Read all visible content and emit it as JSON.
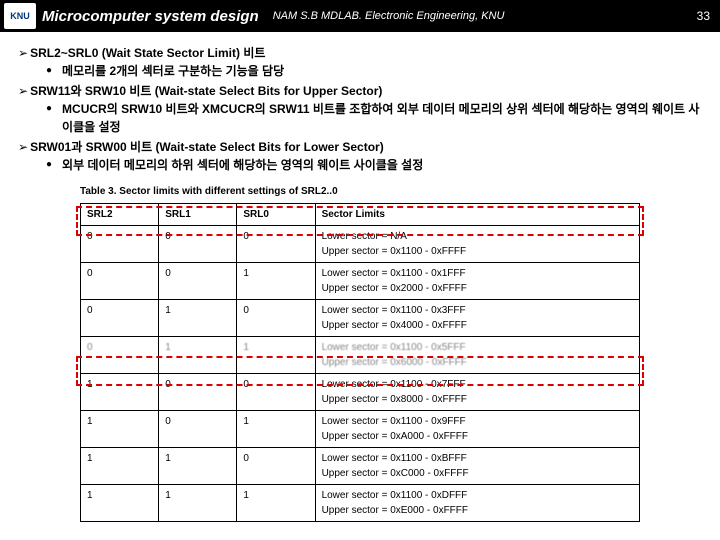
{
  "header": {
    "logo": "KNU",
    "title": "Microcomputer system design",
    "subtitle": "NAM S.B MDLAB. Electronic Engineering, KNU",
    "page": "33"
  },
  "bullets": [
    {
      "type": "main",
      "text": "SRL2~SRL0 (Wait State Sector Limit) 비트",
      "bold": true
    },
    {
      "type": "sub",
      "text": "메모리를 2개의 섹터로 구분하는 기능을 담당",
      "bold": true
    },
    {
      "type": "main",
      "text": "SRW11와 SRW10 비트 (Wait-state Select Bits for Upper Sector)",
      "bold": true
    },
    {
      "type": "sub",
      "text": "MCUCR의 SRW10 비트와 XMCUCR의 SRW11 비트를 조합하여 외부 데이터 메모리의 상위 섹터에 해당하는 영역의 웨이트 사이클을 설정",
      "bold": true
    },
    {
      "type": "main",
      "text": "SRW01과 SRW00 비트 (Wait-state Select Bits for Lower Sector)",
      "bold": true
    },
    {
      "type": "sub",
      "text": "외부 데이터 메모리의 하위 섹터에 해당하는 영역의 웨이트 사이클을 설정",
      "bold": true
    }
  ],
  "table": {
    "caption": "Table 3. Sector limits with different settings of SRL2..0",
    "headers": [
      "SRL2",
      "SRL1",
      "SRL0",
      "Sector Limits"
    ],
    "rows": [
      {
        "c": [
          "0",
          "0",
          "0"
        ],
        "limits": [
          "Lower sector = N/A",
          "Upper sector = 0x1100 - 0xFFFF"
        ],
        "blur": false
      },
      {
        "c": [
          "0",
          "0",
          "1"
        ],
        "limits": [
          "Lower sector = 0x1100 - 0x1FFF",
          "Upper sector = 0x2000 - 0xFFFF"
        ],
        "blur": false
      },
      {
        "c": [
          "0",
          "1",
          "0"
        ],
        "limits": [
          "Lower sector = 0x1100 - 0x3FFF",
          "Upper sector = 0x4000 - 0xFFFF"
        ],
        "blur": false
      },
      {
        "c": [
          "0",
          "1",
          "1"
        ],
        "limits": [
          "Lower sector = 0x1100 - 0x5FFF",
          "Upper sector = 0x6000 - 0xFFFF"
        ],
        "blur": true
      },
      {
        "c": [
          "1",
          "0",
          "0"
        ],
        "limits": [
          "Lower sector = 0x1100 - 0x7FFF",
          "Upper sector = 0x8000 - 0xFFFF"
        ],
        "blur": false
      },
      {
        "c": [
          "1",
          "0",
          "1"
        ],
        "limits": [
          "Lower sector = 0x1100 - 0x9FFF",
          "Upper sector = 0xA000 - 0xFFFF"
        ],
        "blur": false
      },
      {
        "c": [
          "1",
          "1",
          "0"
        ],
        "limits": [
          "Lower sector = 0x1100 - 0xBFFF",
          "Upper sector = 0xC000 - 0xFFFF"
        ],
        "blur": false
      },
      {
        "c": [
          "1",
          "1",
          "1"
        ],
        "limits": [
          "Lower sector = 0x1100 - 0xDFFF",
          "Upper sector = 0xE000 - 0xFFFF"
        ],
        "blur": false
      }
    ]
  }
}
